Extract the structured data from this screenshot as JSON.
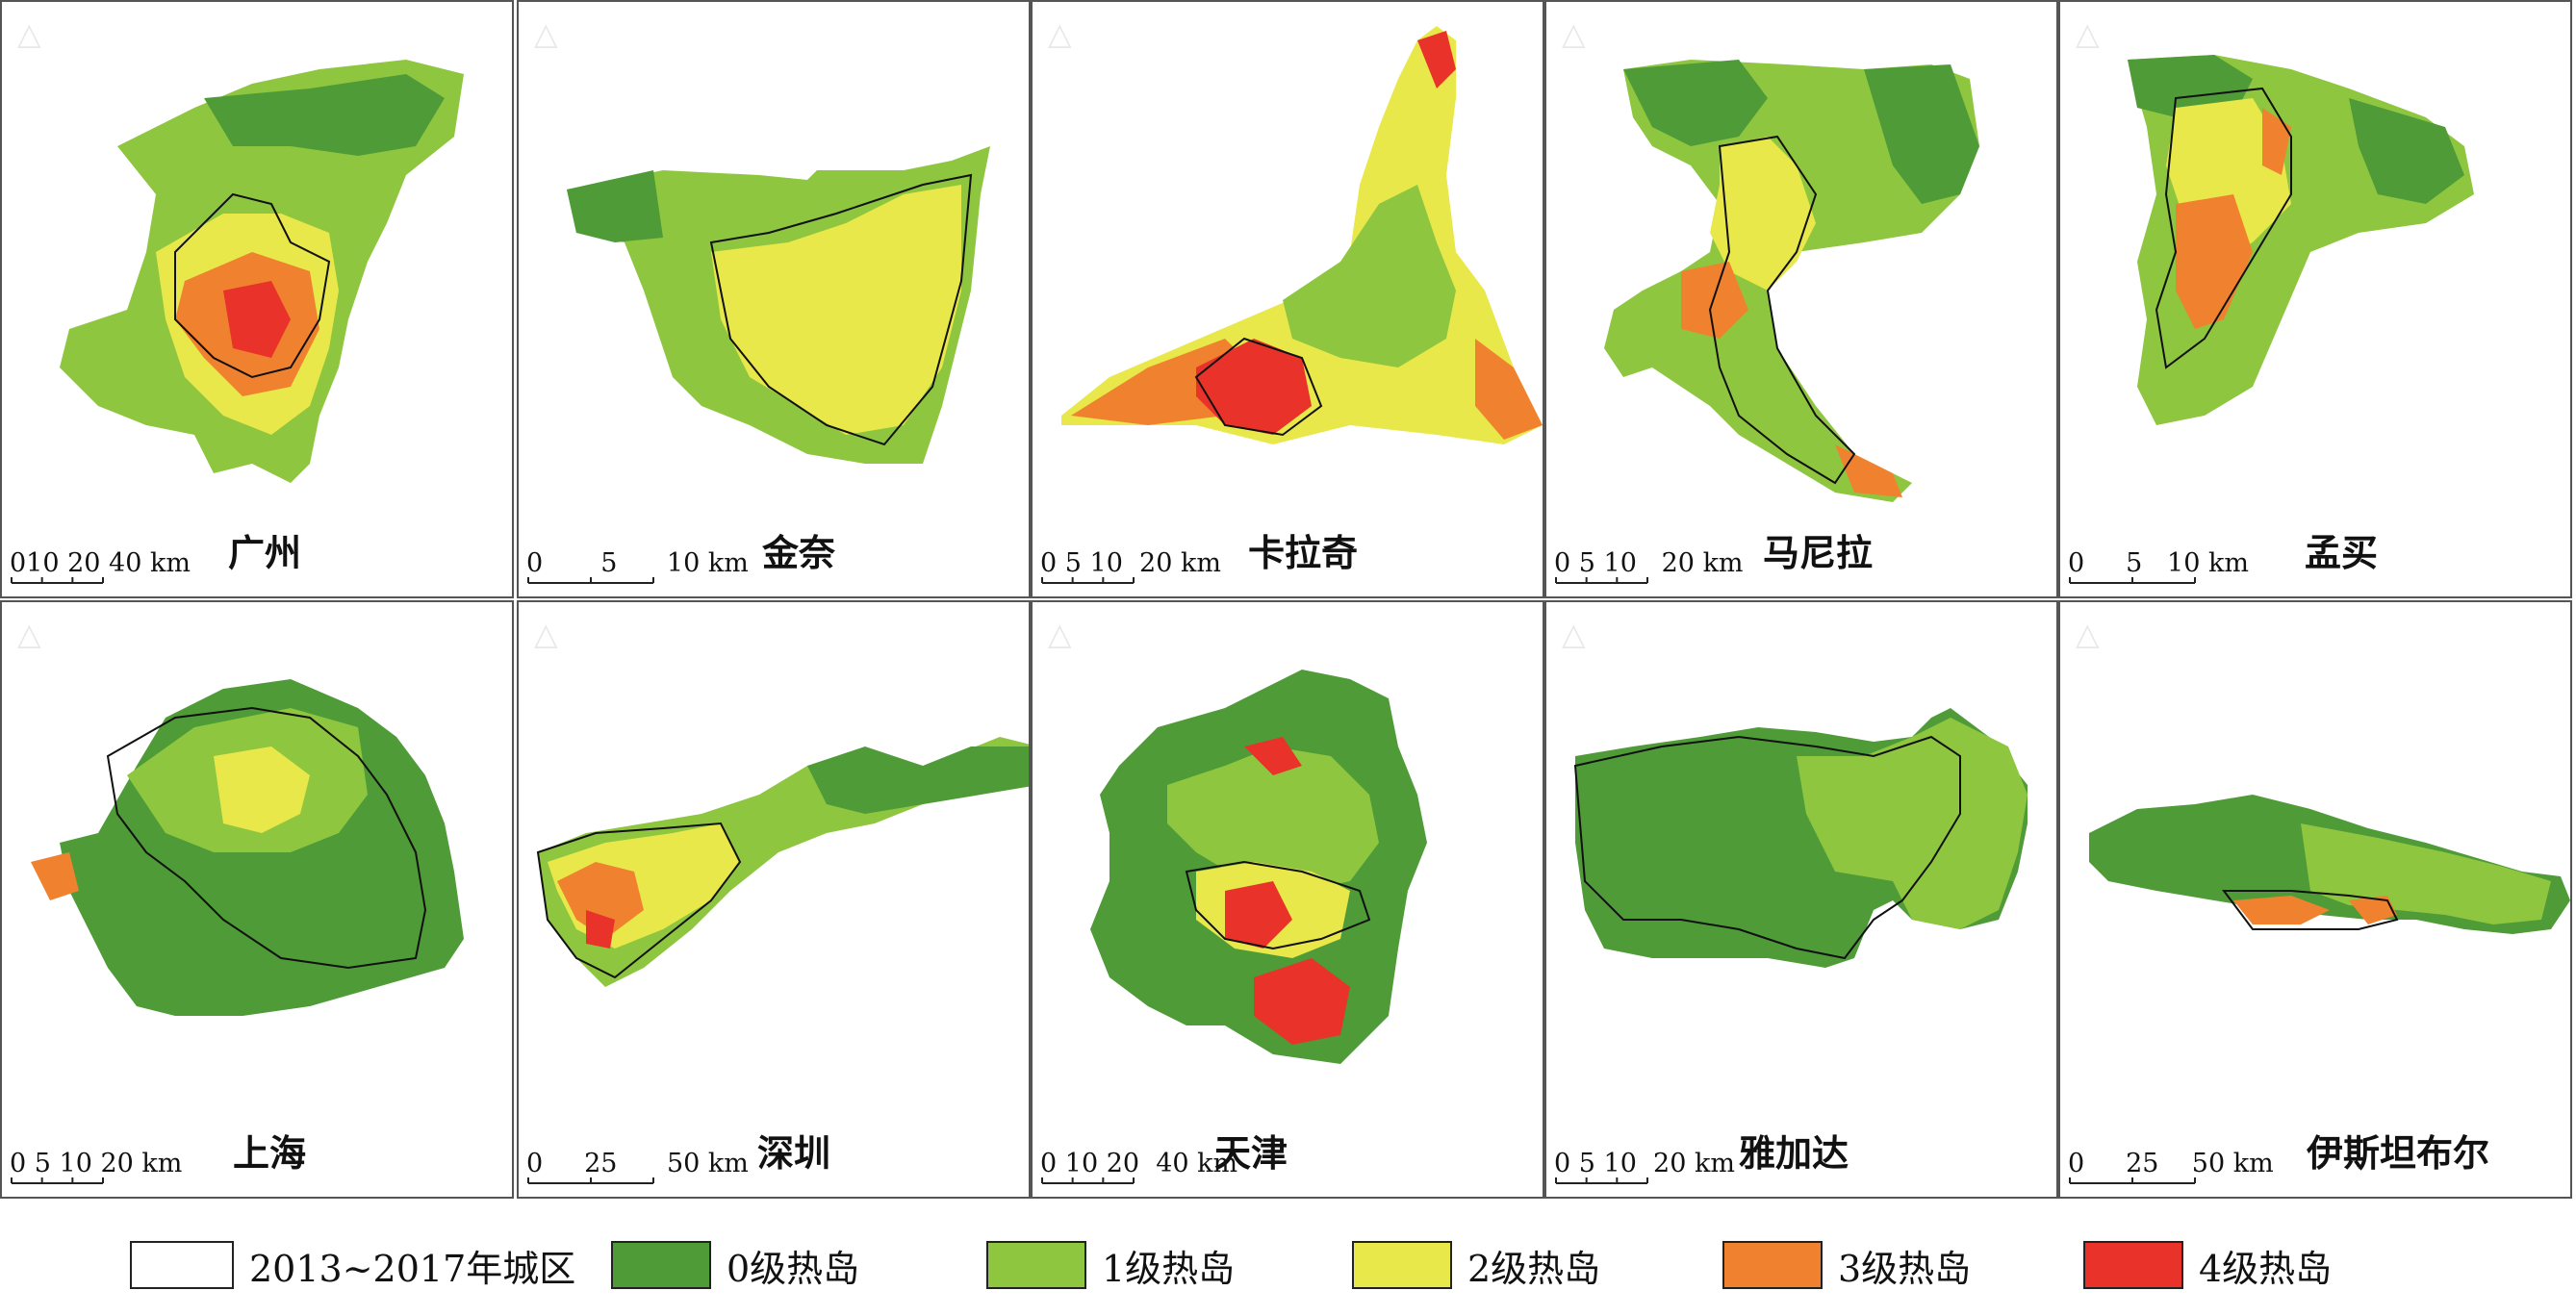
{
  "map": {
    "panels": [
      {
        "name": "广州",
        "scale_text": "010 20 40 km",
        "ticks": 4
      },
      {
        "name": "金奈",
        "scale_text": "0       5      10 km",
        "ticks": 3
      },
      {
        "name": "卡拉奇",
        "scale_text": "0 5 10  20 km",
        "ticks": 4
      },
      {
        "name": "马尼拉",
        "scale_text": "0 5 10   20 km",
        "ticks": 4
      },
      {
        "name": "孟买",
        "scale_text": "0     5   10 km",
        "ticks": 3
      },
      {
        "name": "上海",
        "scale_text": "0 5 10 20 km",
        "ticks": 4
      },
      {
        "name": "深圳",
        "scale_text": "0     25      50 km",
        "ticks": 3
      },
      {
        "name": "天津",
        "scale_text": "0 10 20  40 km",
        "ticks": 4
      },
      {
        "name": "雅加达",
        "scale_text": "0 5 10  20 km",
        "ticks": 4
      },
      {
        "name": "伊斯坦布尔",
        "scale_text": "0     25    50 km",
        "ticks": 3
      }
    ],
    "north_arrow_icon": "north-arrow-icon"
  },
  "legend": {
    "items": [
      {
        "label": "2013~2017年城区",
        "color": "#ffffff"
      },
      {
        "label": "0级热岛",
        "color": "#4e9b38"
      },
      {
        "label": "1级热岛",
        "color": "#8ec63f"
      },
      {
        "label": "2级热岛",
        "color": "#e8e84a"
      },
      {
        "label": "3级热岛",
        "color": "#f0822f"
      },
      {
        "label": "4级热岛",
        "color": "#e8322a"
      }
    ]
  }
}
